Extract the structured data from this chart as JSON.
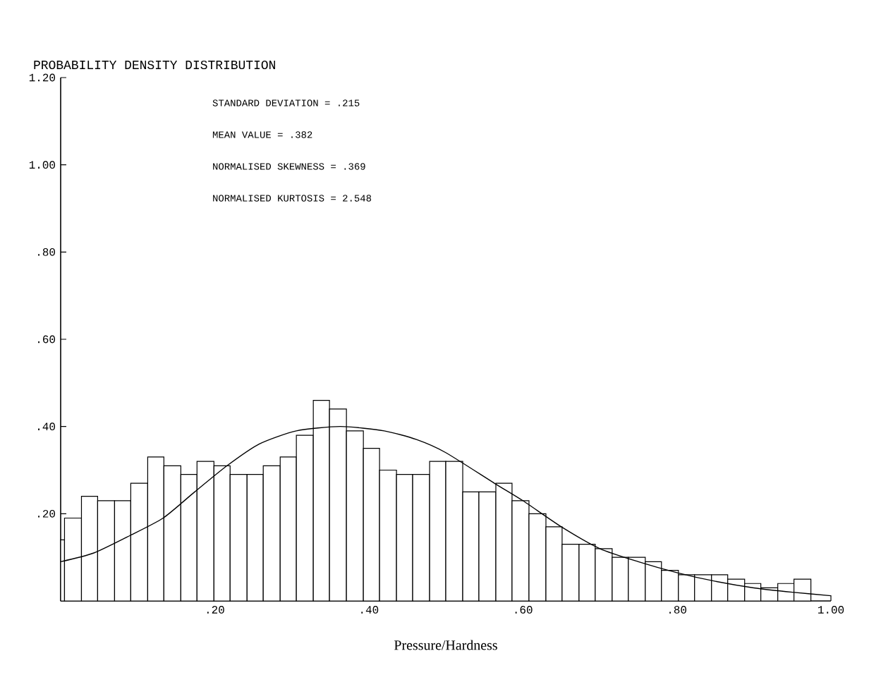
{
  "chart_data": {
    "type": "histogram",
    "title": "PROBABILITY DENSITY DISTRIBUTION",
    "xlabel": "Pressure/Hardness",
    "annotations": [
      "STANDARD DEVIATION  =   .215",
      "MEAN VALUE          =   .382",
      "NORMALISED SKEWNESS =   .369",
      "NORMALISED KURTOSIS =  2.548"
    ],
    "xlim": [
      0,
      1
    ],
    "ylim": [
      0,
      1.2
    ],
    "xticks": [
      {
        "value": 0.2,
        "label": ".20"
      },
      {
        "value": 0.4,
        "label": ".40"
      },
      {
        "value": 0.6,
        "label": ".60"
      },
      {
        "value": 0.8,
        "label": ".80"
      },
      {
        "value": 1,
        "label": "1.00"
      }
    ],
    "yticks": [
      {
        "value": 0.2,
        "label": ".20"
      },
      {
        "value": 0.4,
        "label": ".40"
      },
      {
        "value": 0.6,
        "label": ".60"
      },
      {
        "value": 0.8,
        "label": ".80"
      },
      {
        "value": 1,
        "label": "1.00"
      },
      {
        "value": 1.2,
        "label": "1.20"
      }
    ],
    "grid": false,
    "series": [
      {
        "color": "#000000",
        "bins": [
          0,
          0.005,
          0.027,
          0.048,
          0.07,
          0.091,
          0.113,
          0.134,
          0.156,
          0.177,
          0.199,
          0.22,
          0.242,
          0.263,
          0.285,
          0.306,
          0.328,
          0.349,
          0.371,
          0.393,
          0.414,
          0.436,
          0.457,
          0.479,
          0.5,
          0.522,
          0.543,
          0.565,
          0.586,
          0.608,
          0.63,
          0.651,
          0.673,
          0.694,
          0.716,
          0.737,
          0.759,
          0.78,
          0.802,
          0.823,
          0.845,
          0.866,
          0.888,
          0.909,
          0.931,
          0.952,
          0.974
        ],
        "values": [
          0.14,
          0.19,
          0.24,
          0.23,
          0.23,
          0.27,
          0.33,
          0.31,
          0.29,
          0.32,
          0.31,
          0.29,
          0.29,
          0.31,
          0.33,
          0.38,
          0.46,
          0.44,
          0.39,
          0.35,
          0.3,
          0.29,
          0.29,
          0.32,
          0.32,
          0.25,
          0.25,
          0.27,
          0.23,
          0.2,
          0.17,
          0.13,
          0.13,
          0.12,
          0.1,
          0.1,
          0.09,
          0.07,
          0.06,
          0.06,
          0.06,
          0.05,
          0.04,
          0.03,
          0.04,
          0.05
        ]
      },
      {
        "type": "line",
        "color": "#000000",
        "x": [
          0,
          0.043,
          0.09,
          0.133,
          0.174,
          0.216,
          0.258,
          0.306,
          0.363,
          0.42,
          0.462,
          0.5,
          0.563,
          0.6,
          0.65,
          0.7,
          0.75,
          0.8,
          0.85,
          0.9,
          0.95,
          1.0
        ],
        "values": [
          0.09,
          0.11,
          0.15,
          0.19,
          0.25,
          0.31,
          0.36,
          0.39,
          0.4,
          0.39,
          0.37,
          0.34,
          0.27,
          0.23,
          0.17,
          0.12,
          0.09,
          0.065,
          0.045,
          0.03,
          0.02,
          0.012
        ]
      }
    ]
  }
}
